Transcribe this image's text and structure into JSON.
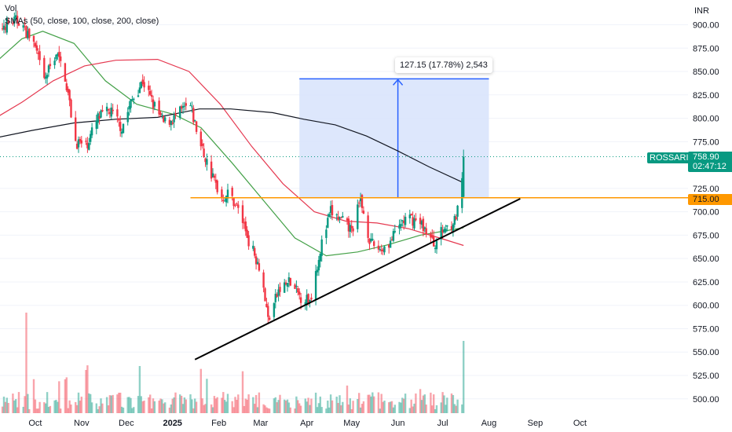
{
  "legend": {
    "volume_label": "Vol",
    "sma_label": "SMAs (50, close, 100, close, 200, close)"
  },
  "price_axis": {
    "currency": "INR",
    "ticks": [
      "900.00",
      "875.00",
      "850.00",
      "825.00",
      "800.00",
      "775.00",
      "725.00",
      "700.00",
      "675.00",
      "650.00",
      "625.00",
      "600.00",
      "575.00",
      "550.00",
      "525.00",
      "500.00"
    ]
  },
  "time_axis": {
    "ticks": [
      "Oct",
      "Nov",
      "Dec",
      "2025",
      "Feb",
      "Mar",
      "Apr",
      "May",
      "Jun",
      "Jul",
      "Aug",
      "Sep",
      "Oct"
    ]
  },
  "symbol_badge": {
    "symbol": "ROSSARI",
    "price": "758.90",
    "countdown": "02:47:12",
    "color": "#089981"
  },
  "level_badge": {
    "price": "715.00",
    "color": "#ff9800"
  },
  "measure_label": "127.15 (17.78%) 2,543",
  "colors": {
    "up": "#089981",
    "down": "#f23645",
    "sma50": "#43a047",
    "sma100": "#e53950",
    "sma200": "#131722",
    "level": "#ff9800",
    "target_box_fill": "#d7e3fb",
    "target_box_stroke": "#2962ff",
    "trendline": "#000000"
  },
  "chart_data": {
    "type": "candlestick",
    "y_axis_range": [
      490,
      915
    ],
    "level": 715,
    "target": {
      "from": 715,
      "to": 842.15,
      "start": "2025-03-27",
      "end": "2025-08-01",
      "arrow_at": "2025-06-01"
    },
    "trendline": {
      "from": [
        "2025-01-16",
        542
      ],
      "to": [
        "2025-08-22",
        714
      ]
    },
    "last_close": 758.9,
    "price_path": [
      [
        "2024-09-01",
        880
      ],
      [
        "2024-09-10",
        900
      ],
      [
        "2024-09-20",
        905
      ],
      [
        "2024-09-30",
        880
      ],
      [
        "2024-10-07",
        840
      ],
      [
        "2024-10-15",
        870
      ],
      [
        "2024-10-21",
        845
      ],
      [
        "2024-10-28",
        775
      ],
      [
        "2024-11-04",
        770
      ],
      [
        "2024-11-12",
        800
      ],
      [
        "2024-11-20",
        808
      ],
      [
        "2024-11-28",
        790
      ],
      [
        "2024-12-05",
        820
      ],
      [
        "2024-12-12",
        840
      ],
      [
        "2024-12-19",
        815
      ],
      [
        "2024-12-26",
        795
      ],
      [
        "2025-01-02",
        800
      ],
      [
        "2025-01-09",
        810
      ],
      [
        "2025-01-13",
        812
      ],
      [
        "2025-01-20",
        770
      ],
      [
        "2025-01-27",
        740
      ],
      [
        "2025-02-03",
        715
      ],
      [
        "2025-02-08",
        720
      ],
      [
        "2025-02-15",
        700
      ],
      [
        "2025-02-22",
        665
      ],
      [
        "2025-03-01",
        640
      ],
      [
        "2025-03-06",
        585
      ],
      [
        "2025-03-13",
        615
      ],
      [
        "2025-03-20",
        625
      ],
      [
        "2025-03-27",
        610
      ],
      [
        "2025-04-03",
        605
      ],
      [
        "2025-04-10",
        660
      ],
      [
        "2025-04-17",
        700
      ],
      [
        "2025-04-24",
        690
      ],
      [
        "2025-05-01",
        680
      ],
      [
        "2025-05-07",
        712
      ],
      [
        "2025-05-14",
        665
      ],
      [
        "2025-05-21",
        660
      ],
      [
        "2025-05-28",
        670
      ],
      [
        "2025-06-04",
        690
      ],
      [
        "2025-06-11",
        692
      ],
      [
        "2025-06-18",
        685
      ],
      [
        "2025-06-25",
        665
      ],
      [
        "2025-07-02",
        682
      ],
      [
        "2025-07-09",
        690
      ],
      [
        "2025-07-13",
        710
      ],
      [
        "2025-07-15",
        758.9
      ]
    ],
    "series": [
      {
        "name": "SMA 50",
        "points": [
          [
            "2024-09-01",
            855
          ],
          [
            "2024-09-22",
            885
          ],
          [
            "2024-10-06",
            893
          ],
          [
            "2024-10-27",
            880
          ],
          [
            "2024-11-17",
            840
          ],
          [
            "2024-12-08",
            815
          ],
          [
            "2025-01-02",
            804
          ],
          [
            "2025-01-20",
            790
          ],
          [
            "2025-02-10",
            752
          ],
          [
            "2025-03-03",
            712
          ],
          [
            "2025-03-24",
            672
          ],
          [
            "2025-04-14",
            653
          ],
          [
            "2025-05-05",
            657
          ],
          [
            "2025-05-26",
            665
          ],
          [
            "2025-06-16",
            675
          ],
          [
            "2025-07-15",
            683
          ]
        ]
      },
      {
        "name": "SMA 100",
        "points": [
          [
            "2024-09-01",
            797
          ],
          [
            "2024-09-22",
            817
          ],
          [
            "2024-10-13",
            840
          ],
          [
            "2024-11-03",
            856
          ],
          [
            "2024-11-24",
            862
          ],
          [
            "2024-12-22",
            863
          ],
          [
            "2025-01-12",
            850
          ],
          [
            "2025-02-02",
            815
          ],
          [
            "2025-02-23",
            770
          ],
          [
            "2025-03-16",
            730
          ],
          [
            "2025-04-06",
            700
          ],
          [
            "2025-04-27",
            690
          ],
          [
            "2025-05-18",
            688
          ],
          [
            "2025-06-08",
            682
          ],
          [
            "2025-06-29",
            672
          ],
          [
            "2025-07-15",
            664
          ]
        ]
      },
      {
        "name": "SMA 200",
        "points": [
          [
            "2024-09-01",
            778
          ],
          [
            "2024-09-29",
            787
          ],
          [
            "2024-10-27",
            795
          ],
          [
            "2024-11-24",
            799
          ],
          [
            "2024-12-22",
            801
          ],
          [
            "2025-01-19",
            810
          ],
          [
            "2025-02-09",
            810
          ],
          [
            "2025-03-09",
            806
          ],
          [
            "2025-03-30",
            799
          ],
          [
            "2025-04-20",
            793
          ],
          [
            "2025-05-11",
            781
          ],
          [
            "2025-06-01",
            765
          ],
          [
            "2025-06-22",
            748
          ],
          [
            "2025-07-15",
            731
          ]
        ]
      }
    ]
  }
}
